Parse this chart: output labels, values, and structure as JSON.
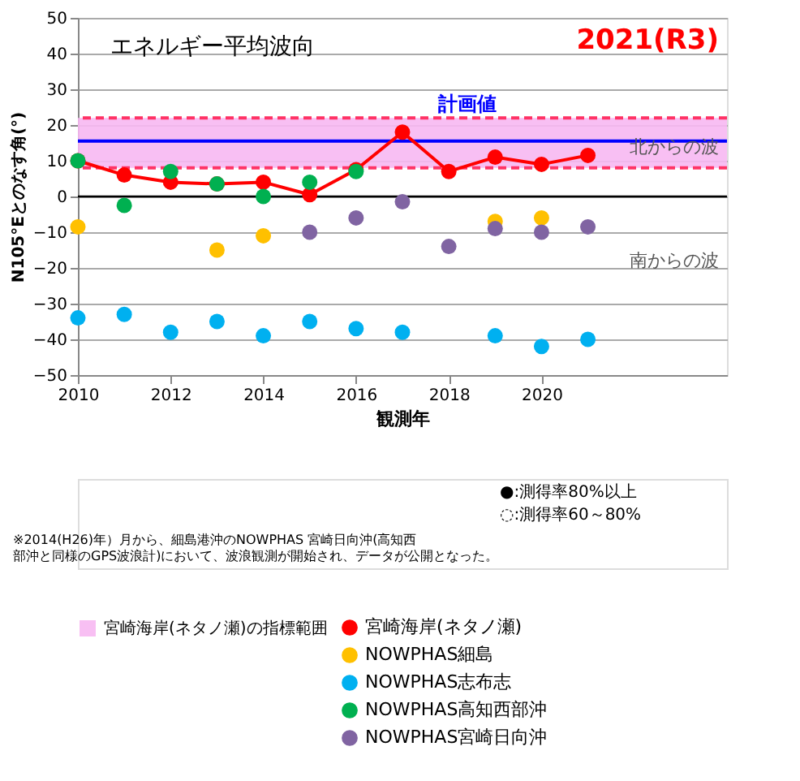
{
  "chart_data": {
    "type": "scatter",
    "xlabel": "観測年",
    "ylabel": "N105°Eとのなす角(°)",
    "x": [
      2010,
      2011,
      2012,
      2013,
      2014,
      2015,
      2016,
      2017,
      2018,
      2019,
      2020,
      2021
    ],
    "series": [
      {
        "name": "宮崎海岸(ネタノ瀬)",
        "type": "line",
        "color": "#ff0000",
        "values": [
          10,
          6,
          4,
          3.5,
          4,
          0.5,
          7.5,
          18,
          7,
          11,
          9,
          11.5
        ]
      },
      {
        "name": "NOWPHAS細島",
        "color": "#ffc000",
        "values": [
          -8.5,
          null,
          null,
          -15,
          -11,
          null,
          null,
          null,
          null,
          -7,
          -6,
          null
        ]
      },
      {
        "name": "NOWPHAS志布志",
        "color": "#00b0f0",
        "values": [
          -34,
          -33,
          -38,
          -35,
          -39,
          -35,
          -37,
          -38,
          null,
          -39,
          -42,
          -40
        ]
      },
      {
        "name": "NOWPHAS高知西部沖",
        "color": "#00b050",
        "values": [
          10,
          -2.5,
          7,
          3.5,
          0,
          4,
          7,
          null,
          null,
          null,
          null,
          null
        ]
      },
      {
        "name": "NOWPHAS宮崎日向沖",
        "color": "#8064a2",
        "values": [
          null,
          null,
          null,
          null,
          null,
          -10,
          -6,
          -1.5,
          -14,
          -9,
          -10,
          -8.5
        ]
      }
    ],
    "bands": [
      {
        "axis": "y",
        "from": 8,
        "to": 22,
        "label": "宮崎海岸(ネタノ瀬)の指標範囲",
        "color": "#f7b8f2"
      }
    ],
    "ref_lines": [
      {
        "axis": "y",
        "value": 15.5,
        "label": "計画値",
        "color": "#0000ff"
      },
      {
        "axis": "y",
        "value": 0,
        "color": "#000000"
      },
      {
        "axis": "y",
        "value": 8,
        "color": "#ff3366",
        "line_style": "dashed"
      },
      {
        "axis": "y",
        "value": 22,
        "color": "#ff3366",
        "line_style": "dashed"
      }
    ],
    "annotations": [
      "エネルギー平均波向",
      "2021(R3)",
      "北からの波",
      "南からの波",
      "●:測得率80%以上",
      "◌:測得率60～80%",
      "※2014(H26)年）月から、細島港沖のNOWPHAS 宮崎日向沖(高知西部沖と同様のGPS波浪計)において、波浪観測が開始され、データが公開となった。"
    ],
    "xlim": [
      2010,
      2024
    ],
    "xticks": [
      2010,
      2012,
      2014,
      2016,
      2018,
      2020
    ],
    "ylim": [
      -50,
      50
    ],
    "yticks": [
      -50,
      -40,
      -30,
      -20,
      -10,
      0,
      10,
      20,
      30,
      40,
      50
    ],
    "grid": "y",
    "legend": "bottom",
    "marker": "circle"
  }
}
